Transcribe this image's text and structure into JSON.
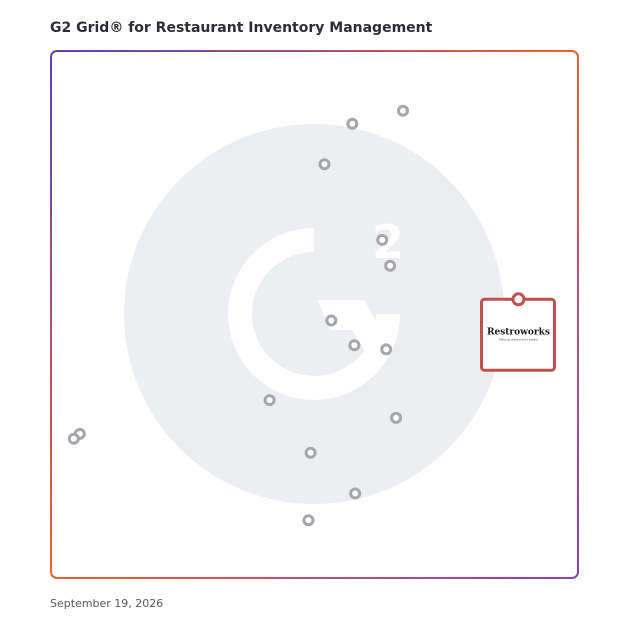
{
  "title": "G2 Grid® for Restaurant Inventory Management",
  "date": "September 19, 2026",
  "colors": {
    "border_top_left": "#5b3fb8",
    "border_top_right": "#f0602a",
    "border_bottom_left": "#1c9ad6",
    "border_bottom_right": "#8a3fb8",
    "watermark": "#eceef2",
    "marker": "#a6a7ad",
    "highlight": "#c0504d"
  },
  "chart_data": {
    "type": "scatter",
    "xlim": [
      -1,
      1
    ],
    "ylim": [
      -1,
      1
    ],
    "grid": true,
    "quadrant_dividers": {
      "x": 0,
      "y": 0
    },
    "points": [
      {
        "x": 0.337,
        "y": 0.776
      },
      {
        "x": 0.144,
        "y": 0.727
      },
      {
        "x": 0.038,
        "y": 0.572
      },
      {
        "x": 0.258,
        "y": 0.284
      },
      {
        "x": 0.288,
        "y": 0.186
      },
      {
        "x": 0.064,
        "y": -0.023
      },
      {
        "x": 0.152,
        "y": -0.117
      },
      {
        "x": 0.273,
        "y": -0.133
      },
      {
        "x": -0.171,
        "y": -0.326
      },
      {
        "x": 0.311,
        "y": -0.394
      },
      {
        "x": -0.894,
        "y": -0.455
      },
      {
        "x": -0.917,
        "y": -0.473
      },
      {
        "x": -0.015,
        "y": -0.527
      },
      {
        "x": 0.155,
        "y": -0.682
      },
      {
        "x": -0.023,
        "y": -0.784
      }
    ],
    "highlighted": {
      "label": "Restroworks",
      "tagline": "Making restaurants better",
      "x": 0.777,
      "y": -0.045
    }
  }
}
